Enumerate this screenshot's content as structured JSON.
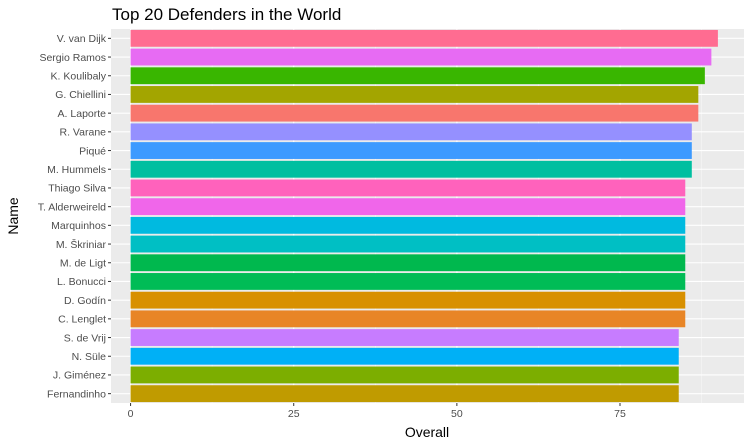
{
  "chart_data": {
    "type": "bar",
    "orientation": "horizontal",
    "title": "Top 20 Defenders in the World",
    "xlabel": "Overall",
    "ylabel": "Name",
    "xlim": [
      -3,
      94
    ],
    "xticks": [
      0,
      25,
      50,
      75
    ],
    "grid": true,
    "legend": "none",
    "panel_background": "#ebebeb",
    "categories": [
      "V. van Dijk",
      "Sergio Ramos",
      "K. Koulibaly",
      "G. Chiellini",
      "A. Laporte",
      "R. Varane",
      "Piqué",
      "M. Hummels",
      "Thiago Silva",
      "T. Alderweireld",
      "Marquinhos",
      "M. Škriniar",
      "M. de Ligt",
      "L. Bonucci",
      "D. Godín",
      "C. Lenglet",
      "S. de Vrij",
      "N. Süle",
      "J. Giménez",
      "Fernandinho"
    ],
    "values": [
      90,
      89,
      88,
      87,
      87,
      86,
      86,
      86,
      85,
      85,
      85,
      85,
      85,
      85,
      85,
      85,
      84,
      84,
      84,
      84
    ],
    "colors": [
      "#FF6C91",
      "#E76BF3",
      "#39B600",
      "#A3A500",
      "#F8766D",
      "#9590FF",
      "#3D9AFF",
      "#00BFA0",
      "#FF62BC",
      "#F066EA",
      "#00BAE0",
      "#00BFC4",
      "#00B84E",
      "#00BC56",
      "#D89000",
      "#E88526",
      "#C77CFF",
      "#00B0F6",
      "#7CAE00",
      "#C09B00"
    ]
  }
}
